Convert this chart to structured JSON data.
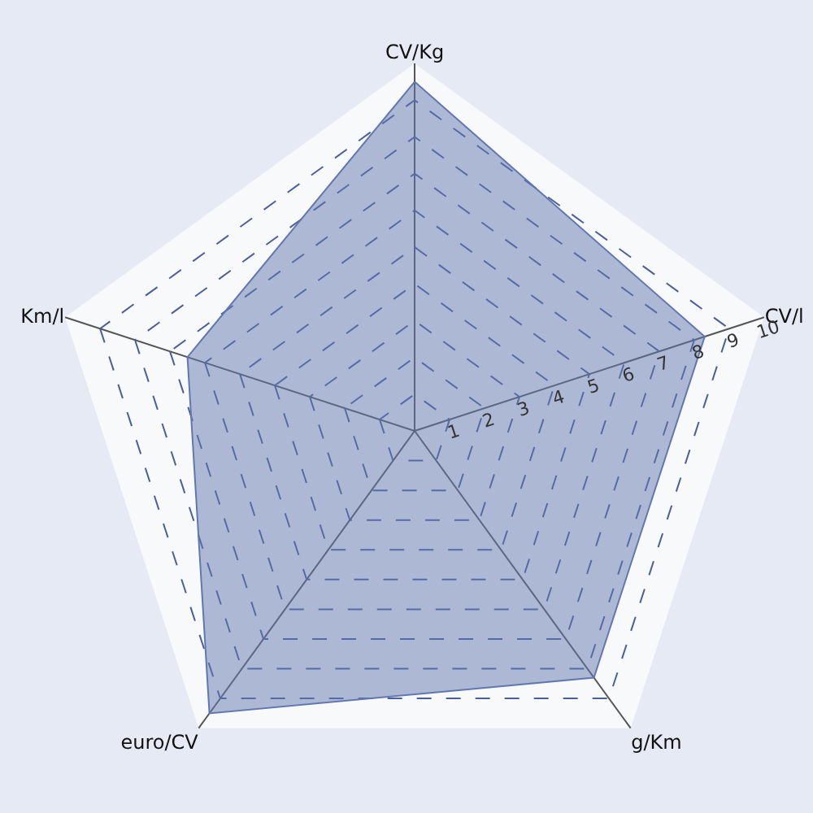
{
  "chart_data": {
    "type": "radar",
    "categories": [
      "CV/Kg",
      "CV/l",
      "g/Km",
      "euro/CV",
      "Km/l"
    ],
    "series": [
      {
        "color": "#6277b0",
        "values": [
          9.5,
          8.3,
          8.3,
          9.5,
          6.5
        ]
      }
    ],
    "ylim": [
      0,
      10
    ],
    "yticks": [
      1,
      2,
      3,
      4,
      5,
      6,
      7,
      8,
      9,
      10
    ],
    "grid": true,
    "marker": "none",
    "line_style": "solid"
  }
}
